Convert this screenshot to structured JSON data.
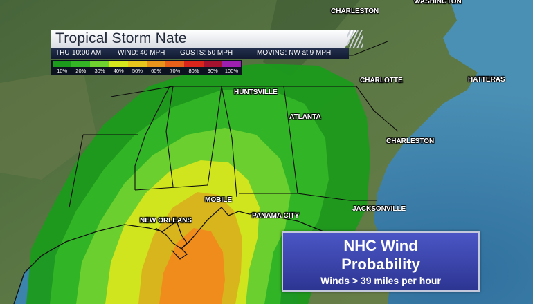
{
  "header": {
    "title": "Tropical Storm Nate",
    "day": "THU",
    "time": "10:00 AM",
    "wind": "WIND: 40 MPH",
    "gusts": "GUSTS: 50 MPH",
    "moving": "MOVING: NW at 9 MPH"
  },
  "legend": {
    "items": [
      {
        "label": "10%",
        "color": "#1c9a1c"
      },
      {
        "label": "20%",
        "color": "#33b526"
      },
      {
        "label": "30%",
        "color": "#6fd12f"
      },
      {
        "label": "40%",
        "color": "#d6e61e"
      },
      {
        "label": "50%",
        "color": "#e8c51c"
      },
      {
        "label": "60%",
        "color": "#e6941c"
      },
      {
        "label": "70%",
        "color": "#e8611a"
      },
      {
        "label": "80%",
        "color": "#d9251b"
      },
      {
        "label": "90%",
        "color": "#a51230"
      },
      {
        "label": "100%",
        "color": "#9c1fb0"
      }
    ]
  },
  "info_box": {
    "line1": "NHC Wind",
    "line2": "Probability",
    "line3": "Winds > 39 miles per hour"
  },
  "cities": [
    {
      "name": "CHARLESTON",
      "id": "charleston-wv"
    },
    {
      "name": "WASHINGTON",
      "id": "washington"
    },
    {
      "name": "CHARLOTTE",
      "id": "charlotte"
    },
    {
      "name": "HATTERAS",
      "id": "hatteras"
    },
    {
      "name": "HUNTSVILLE",
      "id": "huntsville"
    },
    {
      "name": "ATLANTA",
      "id": "atlanta"
    },
    {
      "name": "CHARLESTON",
      "id": "charleston-sc"
    },
    {
      "name": "MOBILE",
      "id": "mobile"
    },
    {
      "name": "NEW ORLEANS",
      "id": "new-orleans"
    },
    {
      "name": "PANAMA CITY",
      "id": "panama-city"
    },
    {
      "name": "JACKSONVILLE",
      "id": "jacksonville"
    }
  ],
  "colors": {
    "ocean": "#3f80a8",
    "land": "#4f6a3c",
    "prob_10": "#1c9a1c",
    "prob_20": "#33b526",
    "prob_30": "#6fd12f",
    "prob_40": "#d6e61e",
    "prob_50": "#d8b21c",
    "prob_60": "#f08a1c"
  }
}
